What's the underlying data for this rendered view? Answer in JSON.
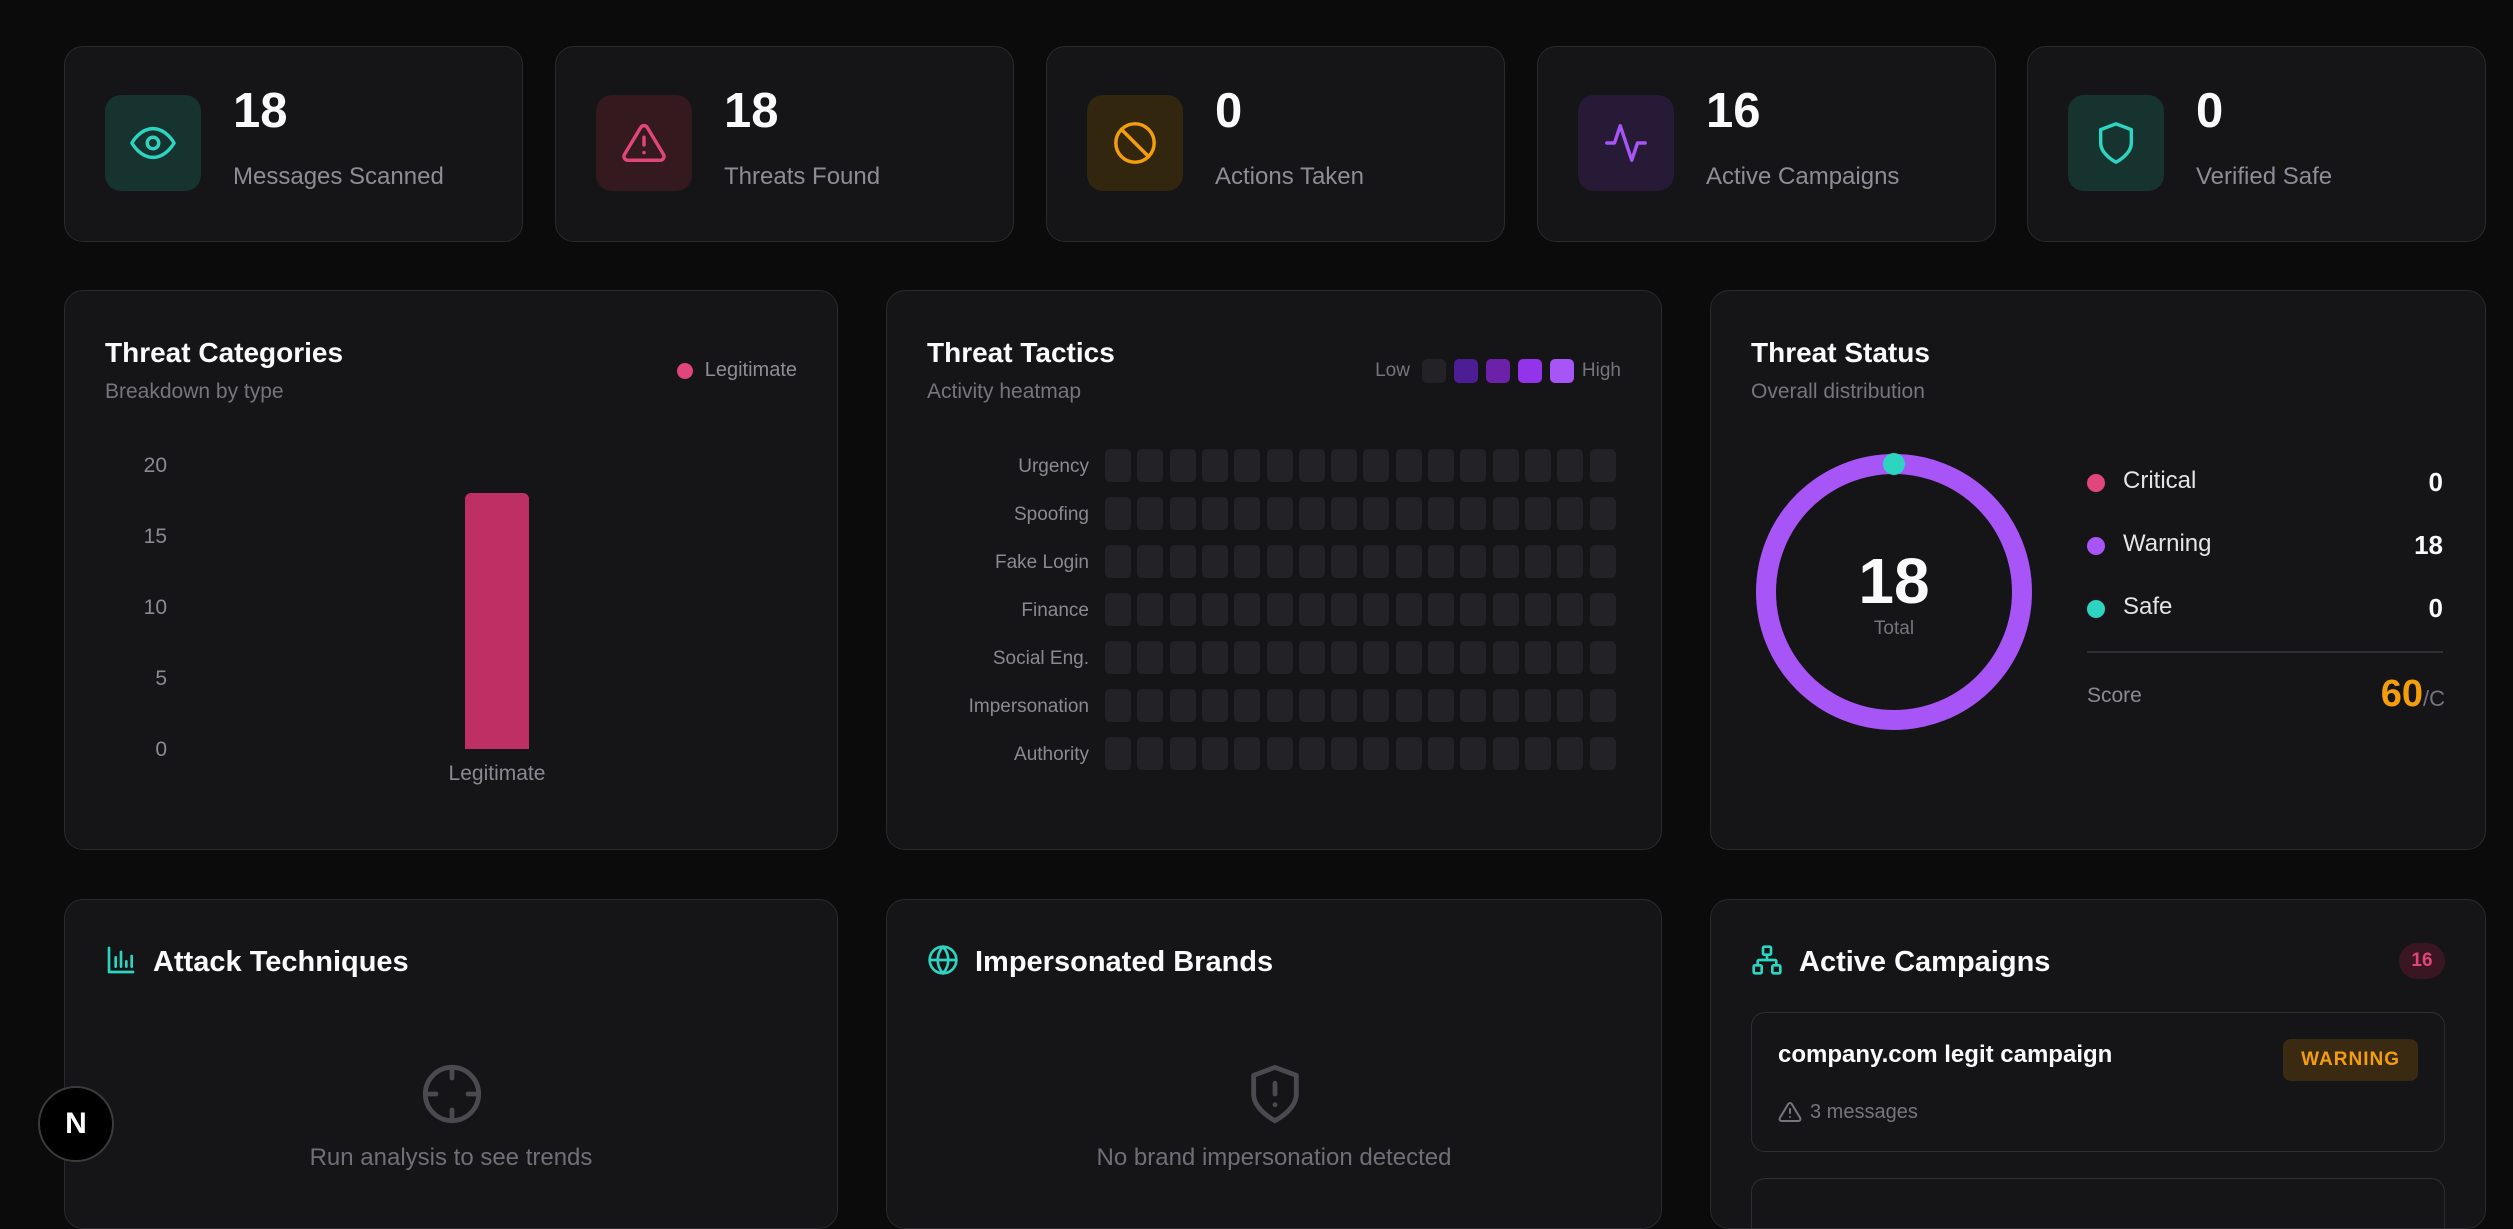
{
  "stats": [
    {
      "value": "18",
      "label": "Messages Scanned",
      "icon": "eye-icon",
      "color": "#2dd4bf"
    },
    {
      "value": "18",
      "label": "Threats Found",
      "icon": "alert-triangle-icon",
      "color": "#e0457b"
    },
    {
      "value": "0",
      "label": "Actions Taken",
      "icon": "ban-icon",
      "color": "#f59e0b"
    },
    {
      "value": "16",
      "label": "Active Campaigns",
      "icon": "activity-icon",
      "color": "#a855f7"
    },
    {
      "value": "0",
      "label": "Verified Safe",
      "icon": "shield-icon",
      "color": "#2dd4bf"
    }
  ],
  "categories": {
    "title": "Threat Categories",
    "subtitle": "Breakdown by type",
    "legend": "Legitimate",
    "chart_data": {
      "type": "bar",
      "categories": [
        "Legitimate"
      ],
      "values": [
        18
      ],
      "yticks": [
        "20",
        "15",
        "10",
        "5",
        "0"
      ],
      "ylim": [
        0,
        20
      ],
      "color": "#be2f63"
    }
  },
  "tactics": {
    "title": "Threat Tactics",
    "subtitle": "Activity heatmap",
    "low": "Low",
    "high": "High",
    "rows": [
      "Urgency",
      "Spoofing",
      "Fake Login",
      "Finance",
      "Social Eng.",
      "Impersonation",
      "Authority"
    ],
    "columns": 16,
    "scale_colors": [
      "#232327",
      "#4c1d95",
      "#6b21a8",
      "#9333ea",
      "#a855f7"
    ]
  },
  "status": {
    "title": "Threat Status",
    "subtitle": "Overall distribution",
    "total": "18",
    "total_label": "Total",
    "items": [
      {
        "name": "Critical",
        "value": "0",
        "color": "#e0457b"
      },
      {
        "name": "Warning",
        "value": "18",
        "color": "#a855f7"
      },
      {
        "name": "Safe",
        "value": "0",
        "color": "#2dd4bf"
      }
    ],
    "score_label": "Score",
    "score_value": "60",
    "score_grade": "/C",
    "score_color": "#f59e0b"
  },
  "techniques": {
    "title": "Attack Techniques",
    "empty": "Run analysis to see trends"
  },
  "brands": {
    "title": "Impersonated Brands",
    "empty": "No brand impersonation detected"
  },
  "campaigns": {
    "title": "Active Campaigns",
    "count": "16",
    "items": [
      {
        "name": "company.com legit campaign",
        "badge": "WARNING",
        "meta": "3 messages"
      }
    ]
  },
  "dev_badge": "N"
}
